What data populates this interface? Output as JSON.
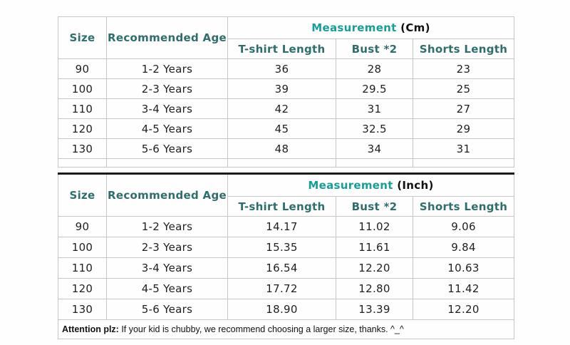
{
  "colors": {
    "header_text": "#2e6e6c",
    "measurement_text": "#169e99",
    "unit_text": "#111111",
    "body_text": "#1f1f1f",
    "grid_line": "#c6c6c6",
    "heavy_border": "#1a1a1a",
    "background": "#fefefe"
  },
  "cm_table": {
    "size_header": "Size",
    "age_header": "Recommended Age",
    "measurement_label": "Measurement",
    "measurement_unit": "(Cm)",
    "sub_headers": {
      "tshirt": "T-shirt Length",
      "bust": "Bust *2",
      "shorts": "Shorts Length"
    },
    "rows": [
      {
        "size": "90",
        "age": "1-2 Years",
        "tshirt": "36",
        "bust": "28",
        "shorts": "23"
      },
      {
        "size": "100",
        "age": "2-3 Years",
        "tshirt": "39",
        "bust": "29.5",
        "shorts": "25"
      },
      {
        "size": "110",
        "age": "3-4 Years",
        "tshirt": "42",
        "bust": "31",
        "shorts": "27"
      },
      {
        "size": "120",
        "age": "4-5 Years",
        "tshirt": "45",
        "bust": "32.5",
        "shorts": "29"
      },
      {
        "size": "130",
        "age": "5-6 Years",
        "tshirt": "48",
        "bust": "34",
        "shorts": "31"
      }
    ]
  },
  "inch_table": {
    "size_header": "Size",
    "age_header": "Recommended Age",
    "measurement_label": "Measurement",
    "measurement_unit": "(Inch)",
    "sub_headers": {
      "tshirt": "T-shirt Length",
      "bust": "Bust *2",
      "shorts": "Shorts Length"
    },
    "rows": [
      {
        "size": "90",
        "age": "1-2 Years",
        "tshirt": "14.17",
        "bust": "11.02",
        "shorts": "9.06"
      },
      {
        "size": "100",
        "age": "2-3 Years",
        "tshirt": "15.35",
        "bust": "11.61",
        "shorts": "9.84"
      },
      {
        "size": "110",
        "age": "3-4 Years",
        "tshirt": "16.54",
        "bust": "12.20",
        "shorts": "10.63"
      },
      {
        "size": "120",
        "age": "4-5 Years",
        "tshirt": "17.72",
        "bust": "12.80",
        "shorts": "11.42"
      },
      {
        "size": "130",
        "age": "5-6 Years",
        "tshirt": "18.90",
        "bust": "13.39",
        "shorts": "12.20"
      }
    ]
  },
  "footer": {
    "attention_bold": "Attention plz:",
    "attention_rest": " If your kid is chubby, we recommend choosing a larger size, thanks. ^_^"
  }
}
